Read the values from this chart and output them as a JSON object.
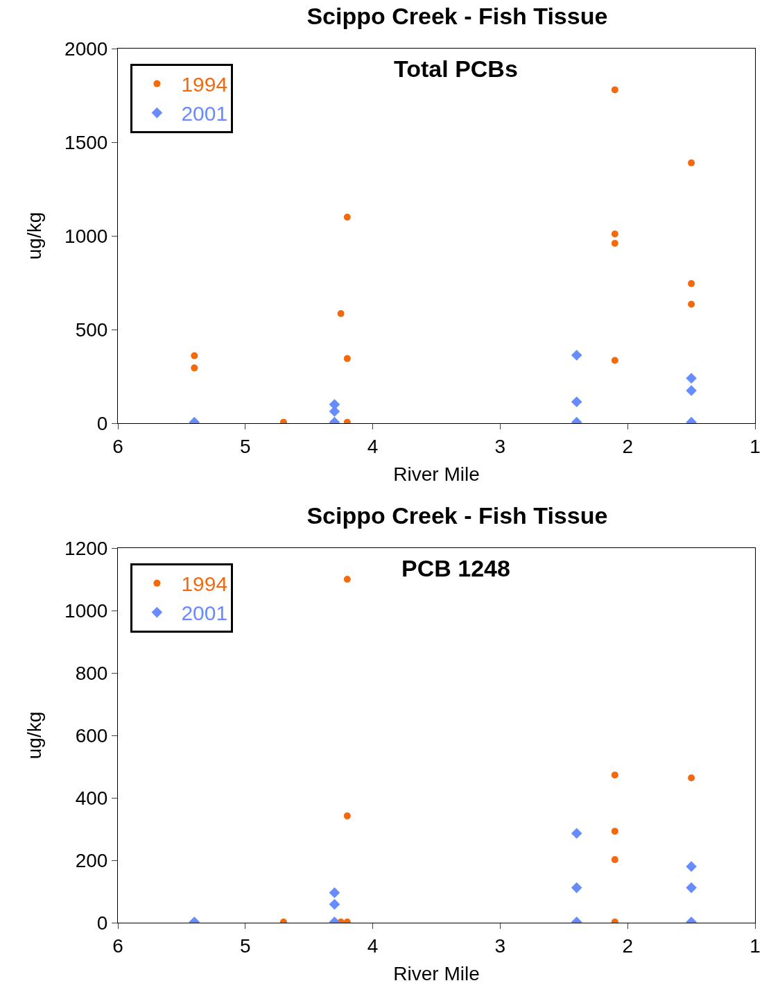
{
  "chart_data": [
    {
      "type": "scatter",
      "title": "Scippo Creek - Fish Tissue",
      "subtitle": "Total PCBs",
      "xlabel": "River Mile",
      "ylabel": "ug/kg",
      "xlim": [
        6,
        1
      ],
      "xticks": [
        6,
        5,
        4,
        3,
        2,
        1
      ],
      "ylim": [
        0,
        2000
      ],
      "yticks": [
        0,
        500,
        1000,
        1500,
        2000
      ],
      "grid": false,
      "legend": "top left",
      "series": [
        {
          "name": "1994",
          "color": "#f26a10",
          "marker": "circle",
          "x": [
            5.4,
            5.4,
            4.7,
            4.25,
            4.2,
            4.2,
            4.2,
            2.1,
            2.1,
            2.1,
            2.1,
            1.5,
            1.5,
            1.5
          ],
          "values": [
            360,
            295,
            5,
            585,
            1100,
            345,
            5,
            1780,
            1010,
            960,
            335,
            1390,
            745,
            635
          ]
        },
        {
          "name": "2001",
          "color": "#668cff",
          "marker": "diamond",
          "x": [
            5.4,
            4.3,
            4.3,
            4.3,
            2.4,
            2.4,
            2.4,
            1.5,
            1.5,
            1.5
          ],
          "values": [
            5,
            100,
            63,
            5,
            363,
            114,
            5,
            240,
            174,
            5
          ]
        }
      ]
    },
    {
      "type": "scatter",
      "title": "Scippo Creek - Fish Tissue",
      "subtitle": "PCB 1248",
      "xlabel": "River Mile",
      "ylabel": "ug/kg",
      "xlim": [
        6,
        1
      ],
      "xticks": [
        6,
        5,
        4,
        3,
        2,
        1
      ],
      "ylim": [
        0,
        1200
      ],
      "yticks": [
        0,
        200,
        400,
        600,
        800,
        1000,
        1200
      ],
      "grid": false,
      "legend": "top left",
      "series": [
        {
          "name": "1994",
          "color": "#f26a10",
          "marker": "circle",
          "x": [
            4.7,
            4.25,
            4.2,
            4.2,
            4.2,
            2.1,
            2.1,
            2.1,
            2.1,
            1.5
          ],
          "values": [
            2,
            2,
            1100,
            342,
            2,
            473,
            293,
            202,
            2,
            464
          ]
        },
        {
          "name": "2001",
          "color": "#668cff",
          "marker": "diamond",
          "x": [
            5.4,
            4.3,
            4.3,
            4.3,
            2.4,
            2.4,
            2.4,
            1.5,
            1.5,
            1.5
          ],
          "values": [
            2,
            96,
            59,
            2,
            286,
            112,
            2,
            180,
            112,
            2
          ]
        }
      ]
    }
  ]
}
